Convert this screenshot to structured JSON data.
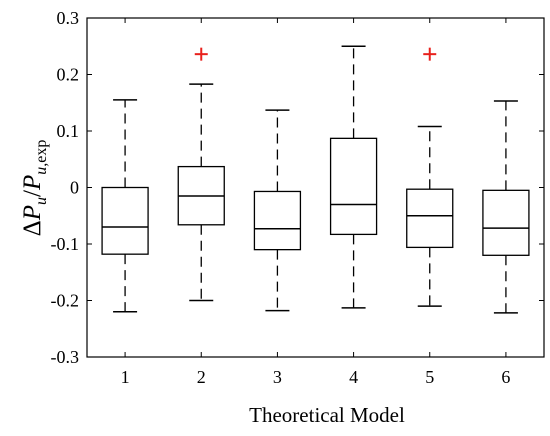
{
  "chart_data": {
    "type": "box",
    "xlabel": "Theoretical Model",
    "ylabel": {
      "delta": "Δ",
      "p1": "P",
      "sub1": "u",
      "slash": "/",
      "p2": "P",
      "sub2a": "u",
      "sub2b": ",exp"
    },
    "ylim": [
      -0.3,
      0.3
    ],
    "yticks": [
      "-0.3",
      "-0.2",
      "-0.1",
      "0",
      "0.1",
      "0.2",
      "0.3"
    ],
    "ytick_values": [
      -0.3,
      -0.2,
      -0.1,
      0,
      0.1,
      0.2,
      0.3
    ],
    "categories": [
      "1",
      "2",
      "3",
      "4",
      "5",
      "6"
    ],
    "boxes": [
      {
        "label": "1",
        "whisker_low": -0.22,
        "q1": -0.118,
        "median": -0.07,
        "q3": 0.0,
        "whisker_high": 0.155,
        "outliers": []
      },
      {
        "label": "2",
        "whisker_low": -0.2,
        "q1": -0.066,
        "median": -0.015,
        "q3": 0.037,
        "whisker_high": 0.183,
        "outliers": [
          0.236
        ]
      },
      {
        "label": "3",
        "whisker_low": -0.218,
        "q1": -0.11,
        "median": -0.073,
        "q3": -0.007,
        "whisker_high": 0.137,
        "outliers": []
      },
      {
        "label": "4",
        "whisker_low": -0.213,
        "q1": -0.083,
        "median": -0.03,
        "q3": 0.087,
        "whisker_high": 0.25,
        "outliers": []
      },
      {
        "label": "5",
        "whisker_low": -0.21,
        "q1": -0.106,
        "median": -0.05,
        "q3": -0.003,
        "whisker_high": 0.108,
        "outliers": [
          0.236
        ]
      },
      {
        "label": "6",
        "whisker_low": -0.222,
        "q1": -0.12,
        "median": -0.072,
        "q3": -0.005,
        "whisker_high": 0.153,
        "outliers": []
      }
    ],
    "colors": {
      "box": "#000000",
      "median": "#000000",
      "outlier": "#e8201c",
      "axes": "#000000"
    },
    "grid": false
  }
}
